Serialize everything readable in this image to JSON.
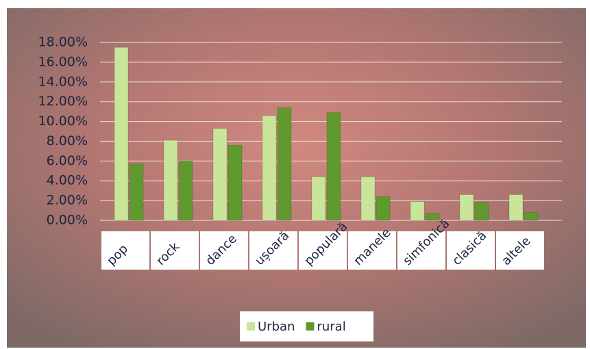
{
  "chart_data": {
    "type": "bar",
    "categories": [
      "pop",
      "rock",
      "dance",
      "ușoară",
      "populară",
      "manele",
      "simfonică",
      "clasică",
      "altele"
    ],
    "series": [
      {
        "name": "Urban",
        "color": "#c8e59a",
        "values": [
          17.5,
          8.1,
          9.3,
          10.6,
          4.4,
          4.4,
          1.9,
          2.6,
          2.6
        ]
      },
      {
        "name": "rural",
        "color": "#5f9a2f",
        "values": [
          5.7,
          6.0,
          7.6,
          11.4,
          10.9,
          2.4,
          0.7,
          1.8,
          0.8
        ]
      }
    ],
    "ylim": [
      0,
      18
    ],
    "yticks": [
      {
        "value": 0,
        "label": "0.00%"
      },
      {
        "value": 2,
        "label": "2.00%"
      },
      {
        "value": 4,
        "label": "4.00%"
      },
      {
        "value": 6,
        "label": "6.00%"
      },
      {
        "value": 8,
        "label": "8.00%"
      },
      {
        "value": 10,
        "label": "10.00%"
      },
      {
        "value": 12,
        "label": "12.00%"
      },
      {
        "value": 14,
        "label": "14.00%"
      },
      {
        "value": 16,
        "label": "16.00%"
      },
      {
        "value": 18,
        "label": "18.00%"
      }
    ],
    "grid": true,
    "legend": "bottom"
  }
}
